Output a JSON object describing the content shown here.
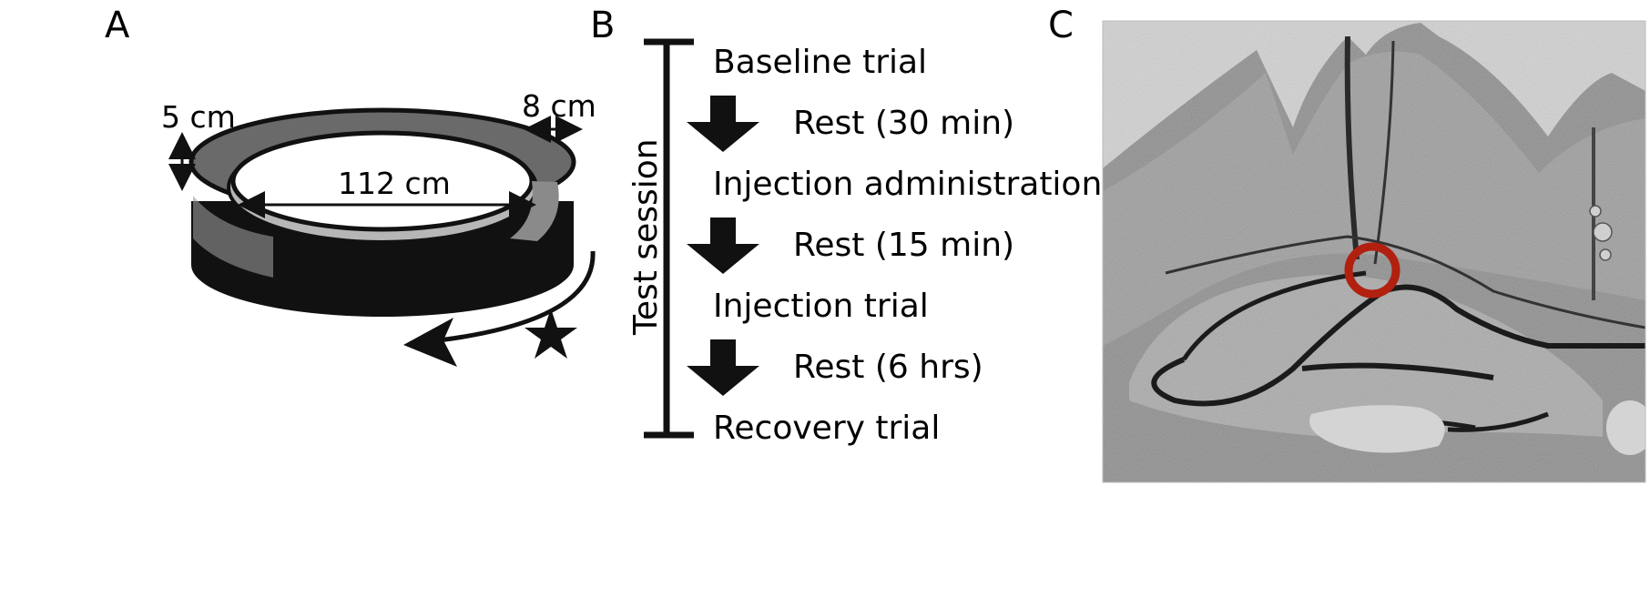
{
  "panel_a": {
    "letter": "A",
    "height_label": "5 cm",
    "width_label": "8 cm",
    "diameter_label": "112 cm"
  },
  "panel_b": {
    "letter": "B",
    "timeline_label": "Test session",
    "steps": [
      "Baseline trial",
      "Rest (30 min)",
      "Injection administration",
      "Rest (15 min)",
      "Injection trial",
      "Rest (6 hrs)",
      "Recovery trial"
    ]
  },
  "panel_c": {
    "letter": "C",
    "marker_color": "#b22010"
  }
}
